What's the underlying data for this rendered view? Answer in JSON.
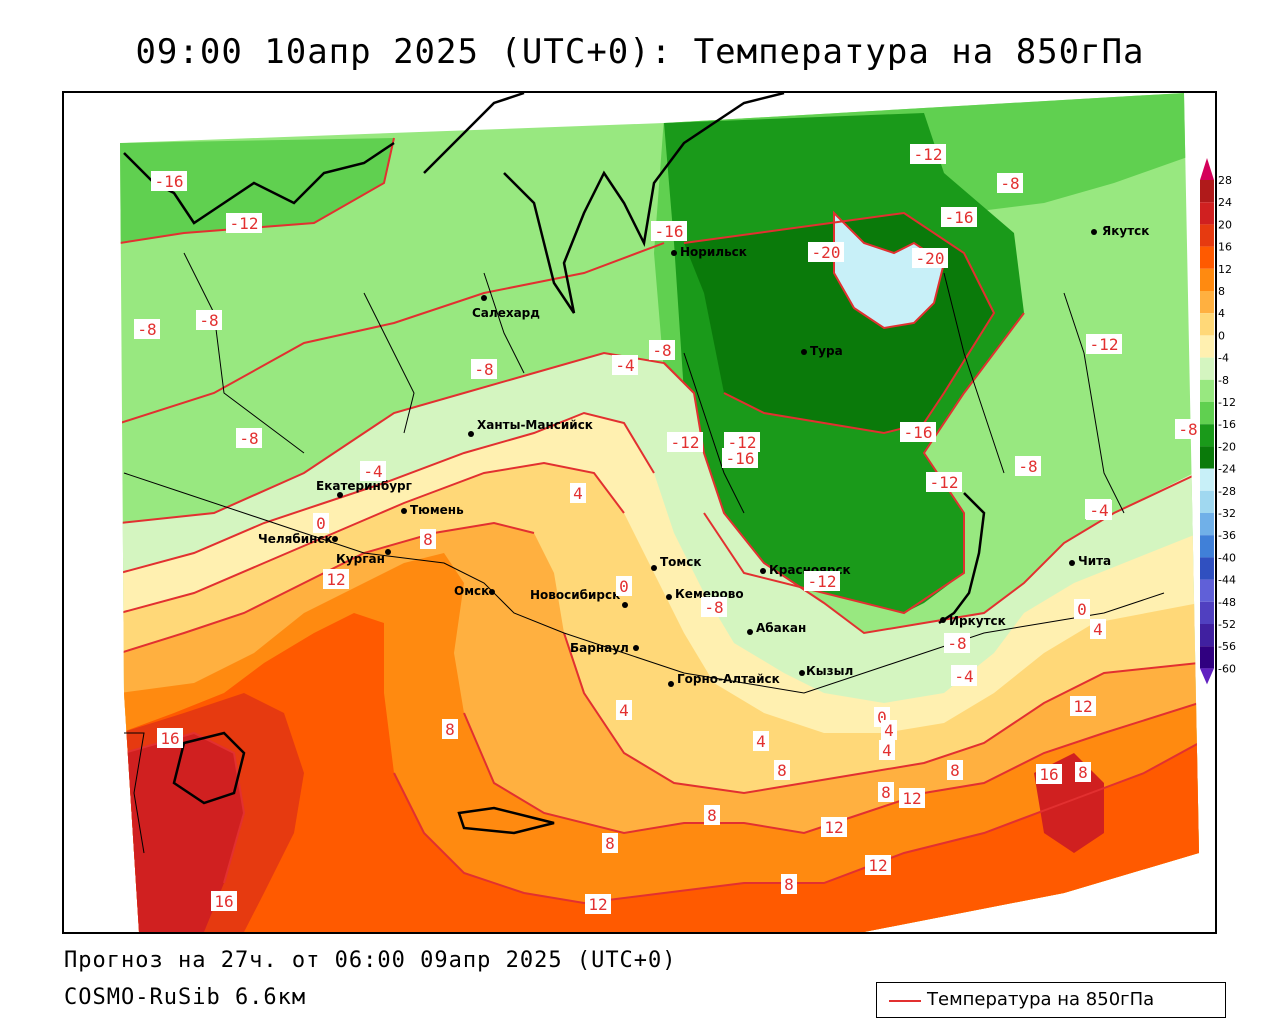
{
  "title": "09:00 10апр 2025 (UTC+0): Температура на 850гПа",
  "forecast_line": "Прогноз на 27ч. от 06:00 09апр 2025 (UTC+0)",
  "model_line": "COSMO-RuSib 6.6км",
  "legend": {
    "label": "Температура на 850гПа",
    "line_color": "#e23030"
  },
  "colorbar": {
    "ticks": [
      "28",
      "24",
      "20",
      "16",
      "12",
      "8",
      "4",
      "0",
      "-4",
      "-8",
      "-12",
      "-16",
      "-20",
      "-24",
      "-28",
      "-32",
      "-36",
      "-40",
      "-44",
      "-48",
      "-52",
      "-56",
      "-60"
    ],
    "colors": [
      "#d4005a",
      "#b01a1a",
      "#d02020",
      "#e63a10",
      "#ff5a00",
      "#ff8a10",
      "#ffb040",
      "#ffd878",
      "#fff0b0",
      "#d4f5c0",
      "#98e880",
      "#60d050",
      "#1a9a1a",
      "#0a7a0a",
      "#c8f0f8",
      "#a0d8f0",
      "#70b0e8",
      "#4080d8",
      "#3050c0",
      "#6060d8",
      "#5040c0",
      "#4020a0",
      "#300080",
      "#6020c0"
    ]
  },
  "cities": [
    {
      "name": "Якутск"
    },
    {
      "name": "Норильск"
    },
    {
      "name": "Салехард"
    },
    {
      "name": "Тура"
    },
    {
      "name": "Ханты-Мансийск"
    },
    {
      "name": "Екатеринбург"
    },
    {
      "name": "Тюмень"
    },
    {
      "name": "Челябинск"
    },
    {
      "name": "Курган"
    },
    {
      "name": "Омск"
    },
    {
      "name": "Новосибирск"
    },
    {
      "name": "Томск"
    },
    {
      "name": "Кемерово"
    },
    {
      "name": "Красноярск"
    },
    {
      "name": "Абакан"
    },
    {
      "name": "Барнаул"
    },
    {
      "name": "Горно-Алтайск"
    },
    {
      "name": "Кызыл"
    },
    {
      "name": "Иркутск"
    },
    {
      "name": "Чита"
    }
  ],
  "isotherm_labels": [
    "-16",
    "-12",
    "-12",
    "-16",
    "-16",
    "-20",
    "-20",
    "-12",
    "-8",
    "-12",
    "-8",
    "-8",
    "-8",
    "-4",
    "-8",
    "-12",
    "-16",
    "-16",
    "-12",
    "-8",
    "-4",
    "-8",
    "-4",
    "0",
    "4",
    "8",
    "12",
    "0",
    "-8",
    "-12",
    "-8",
    "-4",
    "0",
    "4",
    "8",
    "12",
    "8",
    "16",
    "8",
    "16",
    "4",
    "8",
    "8",
    "12",
    "8",
    "12",
    "16",
    "12",
    "12",
    "8",
    "0",
    "4",
    "8",
    "4",
    "4",
    "-4",
    "-8",
    "-4"
  ]
}
